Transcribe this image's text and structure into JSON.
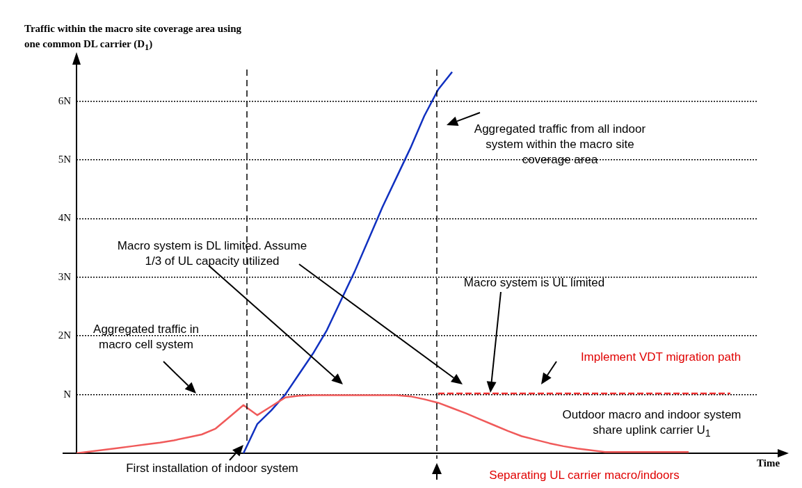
{
  "chart_data": {
    "type": "line",
    "title": "Traffic within the macro site coverage area using one common DL carrier (D$_{1}$)",
    "xlabel": "Time",
    "categories": [
      null,
      null,
      null,
      null,
      null,
      null,
      null,
      null,
      null,
      null,
      null,
      null,
      null,
      null,
      null,
      null,
      null,
      null,
      null,
      null,
      null,
      null,
      null,
      null,
      null,
      null,
      null,
      null,
      null,
      null,
      null,
      null,
      null,
      null,
      null,
      null,
      null,
      null,
      null,
      null,
      null,
      null,
      null,
      null,
      null,
      null,
      null,
      null,
      null,
      null
    ],
    "ylim": [
      0,
      6.6
    ],
    "yticks": [
      {
        "value": 1,
        "label": "N"
      },
      {
        "value": 2,
        "label": "2N"
      },
      {
        "value": 3,
        "label": "3N"
      },
      {
        "value": 4,
        "label": "4N"
      },
      {
        "value": 5,
        "label": "5N"
      },
      {
        "value": 6,
        "label": "6N"
      }
    ],
    "tick_labels": "y",
    "grid": "y",
    "legend": false,
    "marker": "none",
    "series": [
      {
        "color": "#f05a5a",
        "values": [
          0,
          0.03,
          0.06,
          0.09,
          0.12,
          0.15,
          0.18,
          0.22,
          0.27,
          0.32,
          0.42,
          0.62,
          0.82,
          0.65,
          0.8,
          0.95,
          0.98,
          0.99,
          0.99,
          0.99,
          0.99,
          0.99,
          0.99,
          0.99,
          0.97,
          0.92,
          0.86,
          0.77,
          0.68,
          0.58,
          0.48,
          0.38,
          0.29,
          0.23,
          0.17,
          0.12,
          0.08,
          0.05,
          0.02,
          0.02,
          0.02,
          0.02,
          0.02,
          0.02,
          0.02,
          null,
          null,
          null,
          null,
          null
        ]
      },
      {
        "color": "#1030c0",
        "values": [
          null,
          null,
          null,
          null,
          null,
          null,
          null,
          null,
          null,
          null,
          null,
          null,
          0,
          0.5,
          0.73,
          1.0,
          1.35,
          1.7,
          2.1,
          2.6,
          3.1,
          3.65,
          4.2,
          4.7,
          5.2,
          5.75,
          6.2,
          6.5,
          null,
          null,
          null,
          null,
          null,
          null,
          null,
          null,
          null,
          null,
          null,
          null,
          null,
          null,
          null,
          null,
          null,
          null,
          null,
          null,
          null,
          null
        ]
      },
      {
        "color": "#f03030",
        "line_style": "dashed",
        "values": [
          null,
          null,
          null,
          null,
          null,
          null,
          null,
          null,
          null,
          null,
          null,
          null,
          null,
          null,
          null,
          null,
          null,
          null,
          null,
          null,
          null,
          null,
          null,
          null,
          null,
          null,
          1.02,
          1.02,
          1.02,
          1.02,
          1.02,
          1.02,
          1.02,
          1.02,
          1.02,
          1.02,
          1.02,
          1.02,
          1.02,
          1.02,
          1.02,
          1.02,
          1.02,
          1.02,
          1.02,
          1.02,
          1.02,
          1.02,
          null,
          null
        ]
      }
    ],
    "annotations": [
      "Aggregated traffic from all indoor system within the macro site coverage area",
      "Macro system is DL limited. Assume 1/3 of UL capacity utilized",
      "Macro system is UL limited",
      "Aggregated traffic in macro cell system",
      "Implement VDT migration path",
      "Outdoor macro and indoor system share uplink carrier U$_{1}$",
      "First installation of indoor system",
      "Separating UL carrier macro/indoors"
    ]
  }
}
